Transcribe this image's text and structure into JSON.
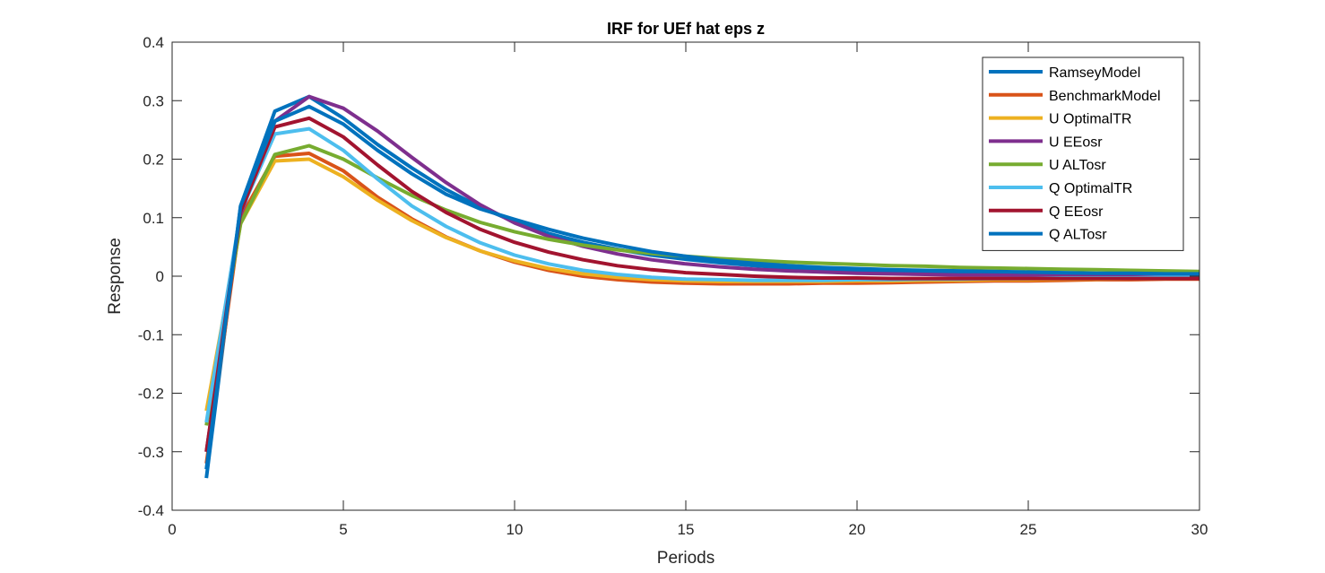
{
  "chart_data": {
    "type": "line",
    "title": "IRF for UEf hat eps z",
    "xlabel": "Periods",
    "ylabel": "Response",
    "xlim": [
      0,
      30
    ],
    "ylim": [
      -0.4,
      0.4
    ],
    "xticks": [
      0,
      5,
      10,
      15,
      20,
      25,
      30
    ],
    "xtick_labels": [
      "0",
      "5",
      "10",
      "15",
      "20",
      "25",
      "30"
    ],
    "yticks": [
      -0.4,
      -0.3,
      -0.2,
      -0.1,
      0,
      0.1,
      0.2,
      0.3,
      0.4
    ],
    "ytick_labels": [
      "-0.4",
      "-0.3",
      "-0.2",
      "-0.1",
      "0",
      "0.1",
      "0.2",
      "0.3",
      "0.4"
    ],
    "grid": false,
    "legend_position": "top-right",
    "x": [
      1,
      2,
      3,
      4,
      5,
      6,
      7,
      8,
      9,
      10,
      11,
      12,
      13,
      14,
      15,
      16,
      17,
      18,
      19,
      20,
      21,
      22,
      23,
      24,
      25,
      26,
      27,
      28,
      29,
      30
    ],
    "series": [
      {
        "name": "RamseyModel",
        "color": "#0072BD",
        "values": [
          -0.345,
          0.12,
          0.282,
          0.307,
          0.27,
          0.225,
          0.185,
          0.148,
          0.118,
          0.093,
          0.073,
          0.058,
          0.046,
          0.036,
          0.029,
          0.023,
          0.018,
          0.014,
          0.011,
          0.009,
          0.007,
          0.006,
          0.005,
          0.004,
          0.003,
          0.003,
          0.002,
          0.002,
          0.002,
          0.001
        ]
      },
      {
        "name": "BenchmarkModel",
        "color": "#D95319",
        "values": [
          -0.32,
          0.1,
          0.205,
          0.21,
          0.18,
          0.135,
          0.098,
          0.067,
          0.043,
          0.024,
          0.01,
          0.0,
          -0.006,
          -0.01,
          -0.012,
          -0.013,
          -0.013,
          -0.013,
          -0.012,
          -0.012,
          -0.011,
          -0.01,
          -0.009,
          -0.008,
          -0.008,
          -0.007,
          -0.006,
          -0.006,
          -0.005,
          -0.005
        ]
      },
      {
        "name": "U OptimalTR",
        "color": "#EDB120",
        "values": [
          -0.23,
          0.09,
          0.197,
          0.2,
          0.17,
          0.13,
          0.095,
          0.066,
          0.043,
          0.026,
          0.013,
          0.004,
          -0.002,
          -0.006,
          -0.008,
          -0.009,
          -0.009,
          -0.009,
          -0.009,
          -0.008,
          -0.008,
          -0.007,
          -0.007,
          -0.006,
          -0.006,
          -0.005,
          -0.005,
          -0.004,
          -0.004,
          -0.003
        ]
      },
      {
        "name": "U EEosr",
        "color": "#7E2F8E",
        "values": [
          -0.3,
          0.105,
          0.265,
          0.307,
          0.287,
          0.248,
          0.203,
          0.16,
          0.122,
          0.091,
          0.068,
          0.051,
          0.038,
          0.028,
          0.021,
          0.016,
          0.012,
          0.009,
          0.007,
          0.005,
          0.004,
          0.003,
          0.002,
          0.002,
          0.001,
          0.001,
          0.001,
          0.0,
          0.0,
          0.0
        ]
      },
      {
        "name": "U ALTosr",
        "color": "#77AC30",
        "values": [
          -0.255,
          0.09,
          0.208,
          0.223,
          0.2,
          0.168,
          0.138,
          0.113,
          0.092,
          0.076,
          0.063,
          0.053,
          0.045,
          0.039,
          0.034,
          0.03,
          0.027,
          0.024,
          0.022,
          0.02,
          0.018,
          0.017,
          0.015,
          0.014,
          0.013,
          0.012,
          0.011,
          0.01,
          0.009,
          0.008
        ]
      },
      {
        "name": "Q OptimalTR",
        "color": "#4DBEEE",
        "values": [
          -0.25,
          0.11,
          0.243,
          0.252,
          0.215,
          0.166,
          0.12,
          0.085,
          0.057,
          0.036,
          0.021,
          0.01,
          0.003,
          -0.002,
          -0.005,
          -0.006,
          -0.007,
          -0.007,
          -0.007,
          -0.006,
          -0.006,
          -0.005,
          -0.005,
          -0.004,
          -0.004,
          -0.003,
          -0.003,
          -0.003,
          -0.002,
          -0.002
        ]
      },
      {
        "name": "Q EEosr",
        "color": "#A2142F",
        "values": [
          -0.3,
          0.11,
          0.255,
          0.27,
          0.238,
          0.19,
          0.145,
          0.109,
          0.08,
          0.058,
          0.041,
          0.028,
          0.018,
          0.011,
          0.006,
          0.003,
          0.0,
          -0.002,
          -0.003,
          -0.003,
          -0.004,
          -0.004,
          -0.004,
          -0.004,
          -0.004,
          -0.004,
          -0.004,
          -0.004,
          -0.004,
          -0.004
        ]
      },
      {
        "name": "Q ALTosr",
        "color": "#0072BD",
        "values": [
          -0.33,
          0.12,
          0.265,
          0.29,
          0.26,
          0.215,
          0.175,
          0.14,
          0.115,
          0.097,
          0.08,
          0.065,
          0.053,
          0.042,
          0.034,
          0.027,
          0.022,
          0.018,
          0.015,
          0.013,
          0.011,
          0.01,
          0.009,
          0.008,
          0.007,
          0.006,
          0.005,
          0.005,
          0.004,
          0.004
        ]
      }
    ]
  }
}
